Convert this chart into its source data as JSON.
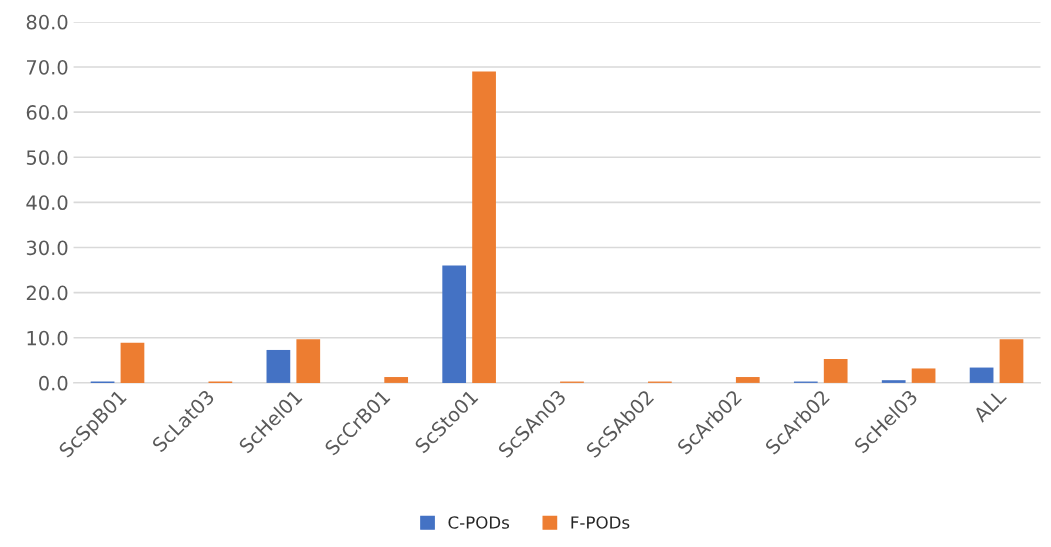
{
  "chart_data": {
    "type": "bar",
    "categories": [
      "ScSpB01",
      "ScLat03",
      "ScHel01",
      "ScCrB01",
      "ScSto01",
      "ScSAn03",
      "ScSAb02",
      "ScArb02",
      "ScArb02",
      "ScHel03",
      "ALL"
    ],
    "series": [
      {
        "name": "C-PODs",
        "color": "#4472c4",
        "values": [
          0.3,
          null,
          7.3,
          null,
          26.0,
          null,
          null,
          null,
          0.3,
          0.6,
          3.4
        ]
      },
      {
        "name": "F-PODs",
        "color": "#ed7d31",
        "values": [
          8.9,
          0.3,
          9.7,
          1.3,
          69.0,
          0.3,
          0.3,
          1.3,
          5.3,
          3.2,
          9.7
        ]
      }
    ],
    "ylim": [
      0,
      80
    ],
    "yticks": [
      {
        "value": 0,
        "label": "0.0"
      },
      {
        "value": 10,
        "label": "10.0"
      },
      {
        "value": 20,
        "label": "20.0"
      },
      {
        "value": 30,
        "label": "30.0"
      },
      {
        "value": 40,
        "label": "40.0"
      },
      {
        "value": 50,
        "label": "50.0"
      },
      {
        "value": 60,
        "label": "60.0"
      },
      {
        "value": 70,
        "label": "70.0"
      },
      {
        "value": 80,
        "label": "80.0"
      }
    ],
    "grid": "y",
    "legend": "bottom"
  }
}
